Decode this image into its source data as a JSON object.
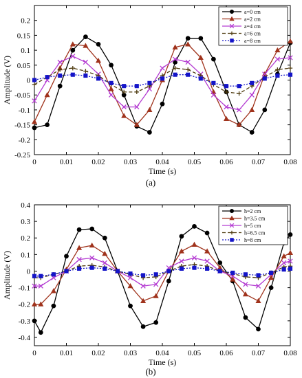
{
  "chart_data": [
    {
      "type": "line",
      "caption": "(a)",
      "xlabel": "Time (s)",
      "ylabel": "Amplitude (V)",
      "xlim": [
        0,
        0.08
      ],
      "ylim": [
        -0.25,
        0.25
      ],
      "xticks": [
        "0",
        "0.01",
        "0.02",
        "0.03",
        "0.04",
        "0.05",
        "0.06",
        "0.07",
        "0.08"
      ],
      "yticks": [
        "0.2",
        "0.15",
        "0.1",
        "0.05",
        "0",
        "-0.05",
        "-0.1",
        "-0.15",
        "-0.2",
        "-0.25"
      ],
      "xtick_values": [
        0,
        0.01,
        0.02,
        0.03,
        0.04,
        0.05,
        0.06,
        0.07,
        0.08
      ],
      "ytick_values": [
        0.2,
        0.15,
        0.1,
        0.05,
        0,
        -0.05,
        -0.1,
        -0.15,
        -0.2,
        -0.25
      ],
      "legend_position": "top-right",
      "grid": false,
      "x": [
        0,
        0.004,
        0.008,
        0.012,
        0.016,
        0.02,
        0.024,
        0.028,
        0.032,
        0.036,
        0.04,
        0.044,
        0.048,
        0.052,
        0.056,
        0.06,
        0.064,
        0.068,
        0.072,
        0.076,
        0.08
      ],
      "series": [
        {
          "name": "a=0 cm",
          "color": "#000000",
          "marker": "circle",
          "dash": "",
          "values": [
            -0.16,
            -0.15,
            -0.02,
            0.1,
            0.145,
            0.12,
            0.05,
            -0.05,
            -0.155,
            -0.175,
            -0.08,
            0.06,
            0.14,
            0.14,
            0.07,
            -0.04,
            -0.15,
            -0.175,
            -0.1,
            0.02,
            0.125
          ]
        },
        {
          "name": "a=2 cm",
          "color": "#a0331c",
          "marker": "triangle",
          "dash": "",
          "values": [
            -0.14,
            -0.05,
            0.04,
            0.12,
            0.115,
            0.065,
            -0.03,
            -0.12,
            -0.15,
            -0.1,
            0.0,
            0.11,
            0.12,
            0.075,
            -0.04,
            -0.13,
            -0.15,
            -0.1,
            0.02,
            0.1,
            0.13
          ]
        },
        {
          "name": "a=4 cm",
          "color": "#b43cd2",
          "marker": "cross",
          "dash": "",
          "values": [
            -0.07,
            0.0,
            0.06,
            0.08,
            0.06,
            0.02,
            -0.05,
            -0.09,
            -0.09,
            -0.03,
            0.04,
            0.07,
            0.06,
            0.02,
            -0.05,
            -0.09,
            -0.1,
            -0.05,
            0.02,
            0.07,
            0.075
          ]
        },
        {
          "name": "a=6 cm",
          "color": "#4d3a0e",
          "marker": "plus",
          "dash": "5,3",
          "values": [
            -0.015,
            0.01,
            0.035,
            0.04,
            0.03,
            0.015,
            -0.015,
            -0.04,
            -0.04,
            -0.02,
            0.015,
            0.04,
            0.035,
            0.015,
            -0.015,
            -0.04,
            -0.045,
            -0.02,
            0.01,
            0.035,
            0.04
          ]
        },
        {
          "name": "a=8 cm",
          "color": "#1414c8",
          "marker": "square",
          "dash": "2,2",
          "values": [
            0.0,
            0.01,
            0.015,
            0.018,
            0.015,
            0.005,
            -0.01,
            -0.02,
            -0.02,
            -0.01,
            0.005,
            0.018,
            0.018,
            0.005,
            -0.01,
            -0.02,
            -0.02,
            -0.01,
            0.005,
            0.015,
            0.018
          ]
        }
      ]
    },
    {
      "type": "line",
      "caption": "(b)",
      "xlabel": "Time (s)",
      "ylabel": "Amplitude (V)",
      "xlim": [
        0,
        0.08
      ],
      "ylim": [
        -0.45,
        0.4
      ],
      "xticks": [
        "0",
        "0.01",
        "0.02",
        "0.03",
        "0.04",
        "0.05",
        "0.06",
        "0.07",
        "0.08"
      ],
      "yticks": [
        "0.4",
        "0.3",
        "0.2",
        "0.1",
        "0",
        "-0.1",
        "-0.2",
        "-0.3",
        "-0.4"
      ],
      "xtick_values": [
        0,
        0.01,
        0.02,
        0.03,
        0.04,
        0.05,
        0.06,
        0.07,
        0.08
      ],
      "ytick_values": [
        0.4,
        0.3,
        0.2,
        0.1,
        0,
        -0.1,
        -0.2,
        -0.3,
        -0.4
      ],
      "legend_position": "top-right",
      "grid": false,
      "x": [
        0,
        0.002,
        0.006,
        0.01,
        0.014,
        0.018,
        0.022,
        0.026,
        0.03,
        0.034,
        0.038,
        0.042,
        0.046,
        0.05,
        0.054,
        0.058,
        0.062,
        0.066,
        0.07,
        0.074,
        0.078,
        0.08
      ],
      "series": [
        {
          "name": "h=2 cm",
          "color": "#000000",
          "marker": "circle",
          "dash": "",
          "values": [
            -0.3,
            -0.37,
            -0.21,
            0.09,
            0.25,
            0.255,
            0.2,
            0.0,
            -0.21,
            -0.335,
            -0.31,
            -0.06,
            0.21,
            0.27,
            0.23,
            0.05,
            -0.06,
            -0.28,
            -0.35,
            -0.1,
            0.17,
            0.22
          ]
        },
        {
          "name": "h=3.5 cm",
          "color": "#a0331c",
          "marker": "triangle",
          "dash": "",
          "values": [
            -0.2,
            -0.2,
            -0.12,
            0.01,
            0.14,
            0.155,
            0.105,
            0.0,
            -0.09,
            -0.18,
            -0.15,
            0.0,
            0.12,
            0.16,
            0.12,
            0.02,
            -0.05,
            -0.14,
            -0.18,
            -0.04,
            0.09,
            0.11
          ]
        },
        {
          "name": "h=5 cm",
          "color": "#b43cd2",
          "marker": "cross",
          "dash": "",
          "values": [
            -0.09,
            -0.09,
            -0.04,
            0.0,
            0.07,
            0.08,
            0.05,
            0.0,
            -0.04,
            -0.09,
            -0.08,
            0.02,
            0.06,
            0.08,
            0.06,
            0.0,
            -0.03,
            -0.08,
            -0.09,
            -0.02,
            0.05,
            0.06
          ]
        },
        {
          "name": "h=6.5 cm",
          "color": "#4d3a0e",
          "marker": "plus",
          "dash": "5,3",
          "values": [
            -0.04,
            -0.04,
            -0.02,
            0.0,
            0.03,
            0.035,
            0.025,
            0.0,
            -0.02,
            -0.04,
            -0.035,
            0.0,
            0.03,
            0.04,
            0.03,
            0.0,
            -0.015,
            -0.035,
            -0.04,
            -0.01,
            0.025,
            0.03
          ]
        },
        {
          "name": "h=8 cm",
          "color": "#1414c8",
          "marker": "square",
          "dash": "2,2",
          "values": [
            -0.03,
            -0.03,
            -0.02,
            0.0,
            0.015,
            0.02,
            0.015,
            0.0,
            -0.015,
            -0.025,
            -0.02,
            0.0,
            0.015,
            0.02,
            0.015,
            0.0,
            -0.01,
            -0.02,
            -0.025,
            -0.01,
            0.01,
            0.015
          ]
        }
      ]
    }
  ]
}
